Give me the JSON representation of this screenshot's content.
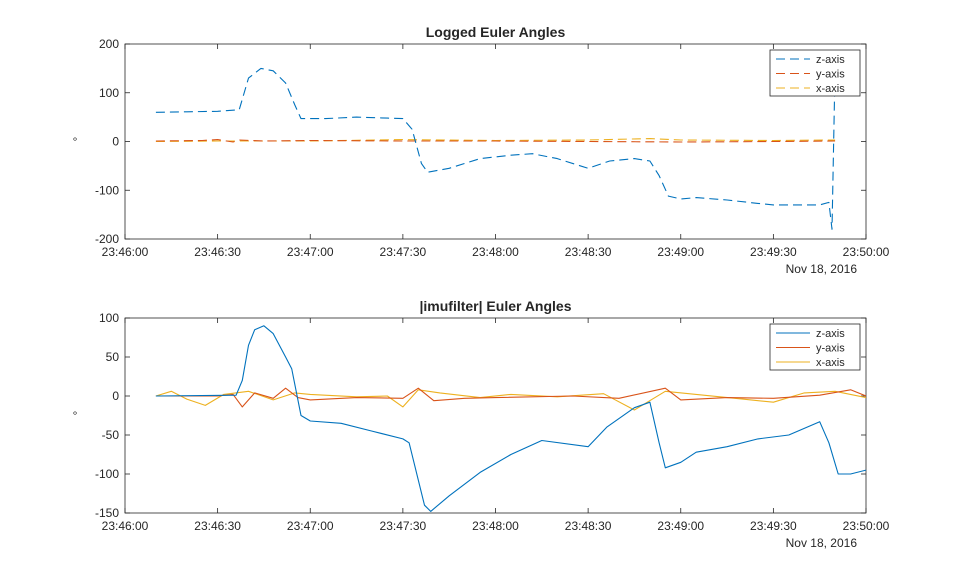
{
  "chart_data": [
    {
      "type": "line",
      "title": "Logged Euler Angles",
      "ylabel": "°",
      "xlabel": "",
      "date_label": "Nov 18, 2016",
      "xlim": [
        "23:46:00",
        "23:50:00"
      ],
      "ylim": [
        -200,
        200
      ],
      "xticks": [
        "23:46:00",
        "23:46:30",
        "23:47:00",
        "23:47:30",
        "23:48:00",
        "23:48:30",
        "23:49:00",
        "23:49:30",
        "23:50:00"
      ],
      "yticks": [
        200,
        100,
        0,
        -100,
        -200
      ],
      "legend": "top-right",
      "line_style": "dashed",
      "series": [
        {
          "name": "z-axis",
          "color": "#0072BD",
          "points": [
            [
              "23:46:10",
              60
            ],
            [
              "23:46:20",
              61
            ],
            [
              "23:46:30",
              62
            ],
            [
              "23:46:37",
              65
            ],
            [
              "23:46:40",
              130
            ],
            [
              "23:46:44",
              150
            ],
            [
              "23:46:48",
              145
            ],
            [
              "23:46:52",
              120
            ],
            [
              "23:46:55",
              75
            ],
            [
              "23:46:57",
              47
            ],
            [
              "23:47:05",
              47
            ],
            [
              "23:47:15",
              50
            ],
            [
              "23:47:25",
              48
            ],
            [
              "23:47:30",
              47
            ],
            [
              "23:47:33",
              25
            ],
            [
              "23:47:36",
              -45
            ],
            [
              "23:47:38",
              -63
            ],
            [
              "23:47:45",
              -55
            ],
            [
              "23:47:55",
              -35
            ],
            [
              "23:48:05",
              -28
            ],
            [
              "23:48:12",
              -25
            ],
            [
              "23:48:20",
              -35
            ],
            [
              "23:48:30",
              -55
            ],
            [
              "23:48:37",
              -40
            ],
            [
              "23:48:45",
              -35
            ],
            [
              "23:48:50",
              -40
            ],
            [
              "23:48:53",
              -70
            ],
            [
              "23:48:56",
              -112
            ],
            [
              "23:49:00",
              -118
            ],
            [
              "23:49:05",
              -115
            ],
            [
              "23:49:15",
              -120
            ],
            [
              "23:49:25",
              -127
            ],
            [
              "23:49:30",
              -130
            ],
            [
              "23:49:45",
              -130
            ],
            [
              "23:49:48",
              -125
            ],
            [
              "23:49:49",
              -180
            ],
            [
              "23:49:50",
              155
            ]
          ]
        },
        {
          "name": "y-axis",
          "color": "#D95319",
          "points": [
            [
              "23:46:10",
              1
            ],
            [
              "23:46:25",
              2
            ],
            [
              "23:46:30",
              4
            ],
            [
              "23:46:35",
              -1
            ],
            [
              "23:46:37",
              3
            ],
            [
              "23:46:45",
              1
            ],
            [
              "23:47:00",
              2
            ],
            [
              "23:47:30",
              1
            ],
            [
              "23:48:00",
              1
            ],
            [
              "23:48:30",
              0
            ],
            [
              "23:49:00",
              -1
            ],
            [
              "23:49:30",
              0
            ],
            [
              "23:49:50",
              1
            ]
          ]
        },
        {
          "name": "x-axis",
          "color": "#EDB120",
          "points": [
            [
              "23:46:10",
              0
            ],
            [
              "23:46:30",
              1
            ],
            [
              "23:47:00",
              1
            ],
            [
              "23:47:30",
              4
            ],
            [
              "23:48:00",
              2
            ],
            [
              "23:48:30",
              3
            ],
            [
              "23:48:50",
              6
            ],
            [
              "23:49:00",
              3
            ],
            [
              "23:49:30",
              2
            ],
            [
              "23:49:50",
              3
            ]
          ]
        }
      ]
    },
    {
      "type": "line",
      "title": "|imufilter| Euler Angles",
      "ylabel": "°",
      "xlabel": "",
      "date_label": "Nov 18, 2016",
      "xlim": [
        "23:46:00",
        "23:50:00"
      ],
      "ylim": [
        -150,
        100
      ],
      "xticks": [
        "23:46:00",
        "23:46:30",
        "23:47:00",
        "23:47:30",
        "23:48:00",
        "23:48:30",
        "23:49:00",
        "23:49:30",
        "23:50:00"
      ],
      "yticks": [
        100,
        50,
        0,
        -50,
        -100,
        -150
      ],
      "legend": "top-right",
      "line_style": "solid",
      "series": [
        {
          "name": "z-axis",
          "color": "#0072BD",
          "points": [
            [
              "23:46:10",
              0
            ],
            [
              "23:46:36",
              1
            ],
            [
              "23:46:38",
              20
            ],
            [
              "23:46:40",
              65
            ],
            [
              "23:46:42",
              85
            ],
            [
              "23:46:45",
              90
            ],
            [
              "23:46:48",
              80
            ],
            [
              "23:46:52",
              50
            ],
            [
              "23:46:54",
              35
            ],
            [
              "23:46:57",
              -25
            ],
            [
              "23:47:00",
              -32
            ],
            [
              "23:47:10",
              -35
            ],
            [
              "23:47:20",
              -45
            ],
            [
              "23:47:30",
              -55
            ],
            [
              "23:47:32",
              -60
            ],
            [
              "23:47:37",
              -140
            ],
            [
              "23:47:39",
              -148
            ],
            [
              "23:47:45",
              -128
            ],
            [
              "23:47:55",
              -98
            ],
            [
              "23:48:05",
              -75
            ],
            [
              "23:48:15",
              -57
            ],
            [
              "23:48:30",
              -65
            ],
            [
              "23:48:36",
              -40
            ],
            [
              "23:48:45",
              -15
            ],
            [
              "23:48:50",
              -8
            ],
            [
              "23:48:53",
              -60
            ],
            [
              "23:48:55",
              -92
            ],
            [
              "23:49:00",
              -85
            ],
            [
              "23:49:05",
              -72
            ],
            [
              "23:49:15",
              -65
            ],
            [
              "23:49:25",
              -55
            ],
            [
              "23:49:35",
              -50
            ],
            [
              "23:49:45",
              -33
            ],
            [
              "23:49:48",
              -60
            ],
            [
              "23:49:51",
              -100
            ],
            [
              "23:49:55",
              -100
            ],
            [
              "23:50:00",
              -95
            ]
          ]
        },
        {
          "name": "y-axis",
          "color": "#D95319",
          "points": [
            [
              "23:46:10",
              0
            ],
            [
              "23:46:30",
              0
            ],
            [
              "23:46:35",
              2
            ],
            [
              "23:46:38",
              -14
            ],
            [
              "23:46:42",
              4
            ],
            [
              "23:46:48",
              -3
            ],
            [
              "23:46:52",
              10
            ],
            [
              "23:46:56",
              -2
            ],
            [
              "23:47:00",
              -5
            ],
            [
              "23:47:15",
              -2
            ],
            [
              "23:47:30",
              -3
            ],
            [
              "23:47:35",
              10
            ],
            [
              "23:47:40",
              -6
            ],
            [
              "23:47:50",
              -3
            ],
            [
              "23:48:00",
              -2
            ],
            [
              "23:48:25",
              0
            ],
            [
              "23:48:40",
              -3
            ],
            [
              "23:48:55",
              10
            ],
            [
              "23:49:00",
              -5
            ],
            [
              "23:49:15",
              -2
            ],
            [
              "23:49:30",
              -3
            ],
            [
              "23:49:45",
              1
            ],
            [
              "23:49:55",
              8
            ],
            [
              "23:50:00",
              0
            ]
          ]
        },
        {
          "name": "x-axis",
          "color": "#EDB120",
          "points": [
            [
              "23:46:10",
              0
            ],
            [
              "23:46:15",
              6
            ],
            [
              "23:46:20",
              -4
            ],
            [
              "23:46:26",
              -12
            ],
            [
              "23:46:32",
              2
            ],
            [
              "23:46:40",
              6
            ],
            [
              "23:46:48",
              -5
            ],
            [
              "23:46:55",
              4
            ],
            [
              "23:47:00",
              2
            ],
            [
              "23:47:15",
              -1
            ],
            [
              "23:47:25",
              0
            ],
            [
              "23:47:30",
              -14
            ],
            [
              "23:47:35",
              8
            ],
            [
              "23:47:42",
              4
            ],
            [
              "23:47:55",
              -2
            ],
            [
              "23:48:05",
              2
            ],
            [
              "23:48:20",
              -1
            ],
            [
              "23:48:35",
              3
            ],
            [
              "23:48:45",
              -18
            ],
            [
              "23:48:55",
              6
            ],
            [
              "23:49:05",
              2
            ],
            [
              "23:49:20",
              -4
            ],
            [
              "23:49:30",
              -8
            ],
            [
              "23:49:40",
              4
            ],
            [
              "23:49:50",
              6
            ],
            [
              "23:50:00",
              -2
            ]
          ]
        }
      ]
    }
  ]
}
